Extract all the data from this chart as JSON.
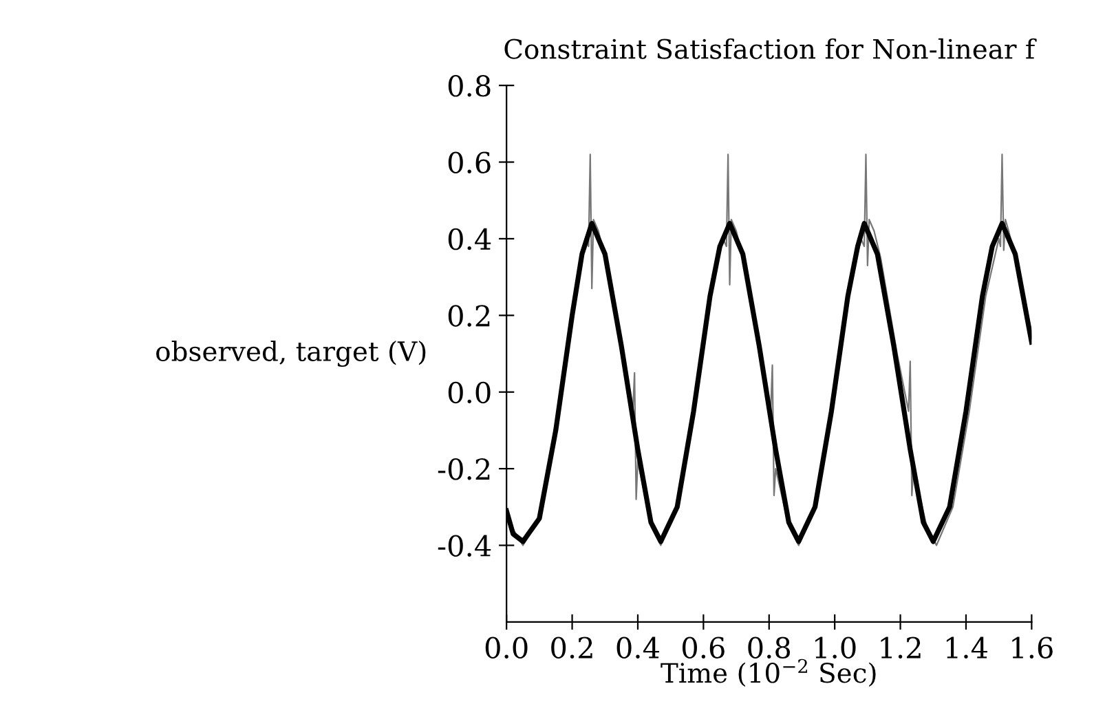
{
  "chart_data": {
    "type": "line",
    "title": "Constraint Satisfaction for Non-linear f",
    "xlabel": "Time (10$^{−2}$ Sec)",
    "ylabel": "observed, target (V)",
    "xlim": [
      0.0,
      1.6
    ],
    "xticks": [
      {
        "value": 0.0,
        "label": "0.0"
      },
      0.2,
      0.4,
      0.6,
      0.8,
      {
        "value": 1.0,
        "label": "1.0"
      },
      1.2,
      1.4,
      1.6
    ],
    "ylim": [
      -0.6,
      0.8
    ],
    "yticks": [
      -0.4,
      -0.2,
      {
        "value": 0.0,
        "label": "0.0"
      },
      0.2,
      0.4,
      0.6,
      0.8
    ],
    "grid": false,
    "legend": false,
    "series": [
      {
        "color": "#777777",
        "x": [
          0.0,
          0.05,
          0.1,
          0.15,
          0.2,
          0.24,
          0.25,
          0.255,
          0.26,
          0.265,
          0.28,
          0.3,
          0.35,
          0.385,
          0.39,
          0.395,
          0.4,
          0.44,
          0.47,
          0.52,
          0.57,
          0.62,
          0.66,
          0.67,
          0.675,
          0.68,
          0.685,
          0.7,
          0.72,
          0.77,
          0.805,
          0.81,
          0.815,
          0.82,
          0.86,
          0.89,
          0.94,
          0.99,
          1.04,
          1.08,
          1.09,
          1.095,
          1.1,
          1.105,
          1.12,
          1.14,
          1.19,
          1.225,
          1.23,
          1.235,
          1.24,
          1.28,
          1.31,
          1.36,
          1.41,
          1.46,
          1.5,
          1.505,
          1.51,
          1.515,
          1.52,
          1.53,
          1.56,
          1.6
        ],
        "values": [
          -0.33,
          -0.4,
          -0.33,
          -0.1,
          0.2,
          0.4,
          0.38,
          0.62,
          0.27,
          0.45,
          0.42,
          0.35,
          0.12,
          -0.05,
          0.05,
          -0.28,
          -0.18,
          -0.35,
          -0.4,
          -0.3,
          -0.05,
          0.25,
          0.4,
          0.38,
          0.62,
          0.28,
          0.45,
          0.42,
          0.35,
          0.1,
          -0.05,
          0.07,
          -0.27,
          -0.2,
          -0.35,
          -0.4,
          -0.3,
          -0.05,
          0.25,
          0.4,
          0.38,
          0.62,
          0.33,
          0.45,
          0.42,
          0.35,
          0.1,
          -0.05,
          0.08,
          -0.27,
          -0.2,
          -0.35,
          -0.4,
          -0.3,
          -0.05,
          0.25,
          0.4,
          0.38,
          0.62,
          0.37,
          0.45,
          0.42,
          0.32,
          0.14
        ]
      },
      {
        "color": "#000000",
        "x": [
          0.0,
          0.02,
          0.05,
          0.1,
          0.15,
          0.2,
          0.23,
          0.26,
          0.3,
          0.35,
          0.4,
          0.44,
          0.47,
          0.52,
          0.57,
          0.62,
          0.65,
          0.68,
          0.72,
          0.77,
          0.82,
          0.86,
          0.89,
          0.94,
          0.99,
          1.04,
          1.07,
          1.09,
          1.13,
          1.18,
          1.23,
          1.27,
          1.3,
          1.35,
          1.4,
          1.45,
          1.48,
          1.51,
          1.55,
          1.6
        ],
        "values": [
          -0.31,
          -0.37,
          -0.39,
          -0.33,
          -0.1,
          0.2,
          0.36,
          0.44,
          0.36,
          0.12,
          -0.15,
          -0.34,
          -0.39,
          -0.3,
          -0.05,
          0.25,
          0.38,
          0.44,
          0.36,
          0.12,
          -0.15,
          -0.34,
          -0.39,
          -0.3,
          -0.05,
          0.25,
          0.38,
          0.44,
          0.36,
          0.12,
          -0.15,
          -0.34,
          -0.39,
          -0.3,
          -0.05,
          0.25,
          0.38,
          0.44,
          0.36,
          0.13
        ]
      }
    ]
  }
}
